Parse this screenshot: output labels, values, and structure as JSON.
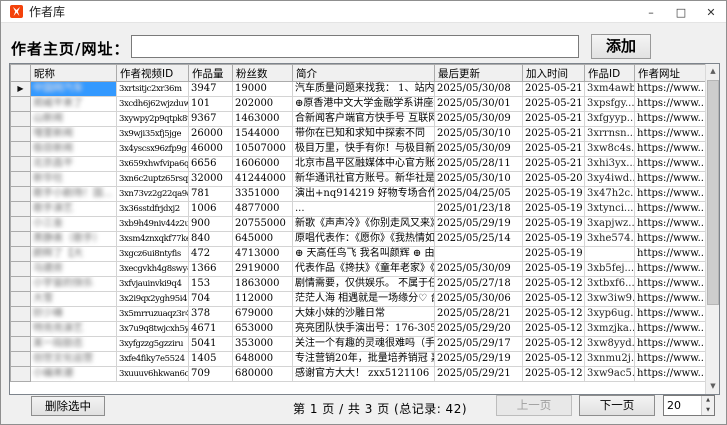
{
  "window": {
    "title": "作者库",
    "controls": {
      "minimize": "–",
      "maximize": "□",
      "close": "✕"
    }
  },
  "form": {
    "label": "作者主页/网址：",
    "input_value": "",
    "add_button": "添加"
  },
  "table": {
    "headers": [
      "昵称",
      "作者视频ID",
      "作品量",
      "粉丝数",
      "简介",
      "最后更新",
      "加入时间",
      "作品ID",
      "作者网址"
    ],
    "selected_row_index": 0,
    "rows": [
      {
        "nickname": "中国网汽车",
        "video_id": "3xrtsitjc2xr36m",
        "works": "3947",
        "fans": "19000",
        "bio": "汽车质量问题来找我： 1、站内搜...",
        "updated": "2025/05/30/08",
        "joined": "2025-05-21 ...",
        "work_id": "3xm4awb...",
        "url": "https://www...."
      },
      {
        "nickname": "郑威平来了",
        "video_id": "3xcdh6j62wjzduw",
        "works": "101",
        "fans": "202000",
        "bio": "⊕原香港中文大学金融学系讲座教...",
        "updated": "2025/05/30/01",
        "joined": "2025-05-21 ...",
        "work_id": "3xpsfgy...",
        "url": "https://www...."
      },
      {
        "nickname": "山新闻",
        "video_id": "3xywpy2p9qtpk8u",
        "works": "9367",
        "fans": "1463000",
        "bio": "合新闻客户端官方快手号 互联网新...",
        "updated": "2025/05/30/09",
        "joined": "2025-05-21 ...",
        "work_id": "3xfgyyp...",
        "url": "https://www...."
      },
      {
        "nickname": "埋里新闻",
        "video_id": "3x9wji35xfj5jge",
        "works": "26000",
        "fans": "1544000",
        "bio": "带你在已知和求知中探索不同",
        "updated": "2025/05/30/10",
        "joined": "2025-05-21 ...",
        "work_id": "3xrrnsn...",
        "url": "https://www...."
      },
      {
        "nickname": "极目新闻",
        "video_id": "3x4yscsx96zfp9g",
        "works": "46000",
        "fans": "10507000",
        "bio": "极目万里，快手有你！与极目新闻...",
        "updated": "2025/05/30/09",
        "joined": "2025-05-21 ...",
        "work_id": "3xw8c4s...",
        "url": "https://www...."
      },
      {
        "nickname": "北京昌平",
        "video_id": "3x659xhwfvipa6q",
        "works": "6656",
        "fans": "1606000",
        "bio": "北京市昌平区融媒体中心官方账号",
        "updated": "2025/05/28/11",
        "joined": "2025-05-21 ...",
        "work_id": "3xhi3yx...",
        "url": "https://www...."
      },
      {
        "nickname": "新华社",
        "video_id": "3xn6c2uptz65rsq",
        "works": "32000",
        "fans": "41244000",
        "bio": "新华通讯社官方账号。新华社是中...",
        "updated": "2025/05/30/10",
        "joined": "2025-05-20 ...",
        "work_id": "3xy4iwd...",
        "url": "https://www...."
      },
      {
        "nickname": "歌手小剧场！国...",
        "video_id": "3xn73vz2g22qa9a",
        "works": "781",
        "fans": "3351000",
        "bio": "演出+nq914219  好物专场合作：j...",
        "updated": "2025/04/25/05",
        "joined": "2025-05-19 ...",
        "work_id": "3x47h2c...",
        "url": "https://www...."
      },
      {
        "nickname": "歌手演艺",
        "video_id": "3x36sstdfrjdxj2",
        "works": "1006",
        "fans": "4877000",
        "bio": "...",
        "updated": "2025/01/23/18",
        "joined": "2025-05-19 ...",
        "work_id": "3xtynci...",
        "url": "https://www...."
      },
      {
        "nickname": "小三金",
        "video_id": "3xb9h49niv44z2u",
        "works": "900",
        "fans": "20755000",
        "bio": "新歌《声声冷》《你别走风又来》...",
        "updated": "2025/05/29/19",
        "joined": "2025-05-19 ...",
        "work_id": "3xapjwz...",
        "url": "https://www...."
      },
      {
        "nickname": "黑静美（歌手）",
        "video_id": "3xsm4znxqkf77ke",
        "works": "840",
        "fans": "645000",
        "bio": "原唱代表作：《愿你》《我热情如...",
        "updated": "2025/05/25/14",
        "joined": "2025-05-19 ...",
        "work_id": "3xhe574...",
        "url": "https://www...."
      },
      {
        "nickname": "颜辉了【大",
        "video_id": "3xgcz6ui8ntyfis",
        "works": "472",
        "fans": "4713000",
        "bio": "⊕ 天高任鸟飞 我名叫颜辉 ⊕ 由...",
        "updated": "",
        "joined": "2025-05-19 ...",
        "work_id": "",
        "url": "https://www...."
      },
      {
        "nickname": "马建房",
        "video_id": "3xecgvkh4g8swy4",
        "works": "1366",
        "fans": "2919000",
        "bio": "代表作品《搀扶》《童年老家》《...",
        "updated": "2025/05/30/09",
        "joined": "2025-05-19 ...",
        "work_id": "3xb5fej...",
        "url": "https://www...."
      },
      {
        "nickname": "小宇宙的快乐",
        "video_id": "3xfvjauinvki9q4",
        "works": "153",
        "fans": "1863000",
        "bio": "剧情需要，仅供娱乐。 不属于任何...",
        "updated": "2025/05/27/18",
        "joined": "2025-05-12 ...",
        "work_id": "3xtbxf6...",
        "url": "https://www...."
      },
      {
        "nickname": "大雪",
        "video_id": "3x2i9qx2ygh95i4",
        "works": "704",
        "fans": "112000",
        "bio": "茫茫人海 相遇就是一场缘分♡ 台...",
        "updated": "2025/05/30/06",
        "joined": "2025-05-12 ...",
        "work_id": "3xw3iw9...",
        "url": "https://www...."
      },
      {
        "nickname": "妙少峰",
        "video_id": "3x5mrruzuaqz3r4",
        "works": "378",
        "fans": "679000",
        "bio": "大妹小妹的沙雕日常",
        "updated": "2025/05/28/21",
        "joined": "2025-05-12 ...",
        "work_id": "3xyp6ug...",
        "url": "https://www...."
      },
      {
        "nickname": "特亮亮演艺",
        "video_id": "3x7u9q8twjcxh5y",
        "works": "4671",
        "fans": "653000",
        "bio": "亮亮团队快手演出号：176-3056-5436",
        "updated": "2025/05/29/20",
        "joined": "2025-05-12 ...",
        "work_id": "3xmzjka...",
        "url": "https://www...."
      },
      {
        "nickname": "某一段励志",
        "video_id": "3xyfgzzg5gzziru",
        "works": "5041",
        "fans": "353000",
        "bio": "关注一个有趣的灵魂很难吗（手动...",
        "updated": "2025/05/29/17",
        "joined": "2025-05-12 ...",
        "work_id": "3xw8yyd...",
        "url": "https://www...."
      },
      {
        "nickname": "创世文化运营",
        "video_id": "3xfe4fiky7e5524",
        "works": "1405",
        "fans": "648000",
        "bio": "专注营销20年，批量培养销冠 嘉纬...",
        "updated": "2025/05/29/19",
        "joined": "2025-05-12 ...",
        "work_id": "3xnmu2j...",
        "url": "https://www...."
      },
      {
        "nickname": "小编来潮",
        "video_id": "3xuuuv6hkwan6ci",
        "works": "709",
        "fans": "680000",
        "bio": "感谢官方大大！ zxx5121106（备注...",
        "updated": "2025/05/29/21",
        "joined": "2025-05-12 ...",
        "work_id": "3xw9ac5...",
        "url": "https://www...."
      }
    ]
  },
  "footer": {
    "delete_button": "删除选中",
    "page_info": "第 1 页 / 共 3 页 (总记录: 42)",
    "prev_button": "上一页",
    "next_button": "下一页",
    "page_size": "20"
  },
  "colors": {
    "selection_blue": "#3399ff",
    "app_icon_orange": "#f4420b"
  }
}
